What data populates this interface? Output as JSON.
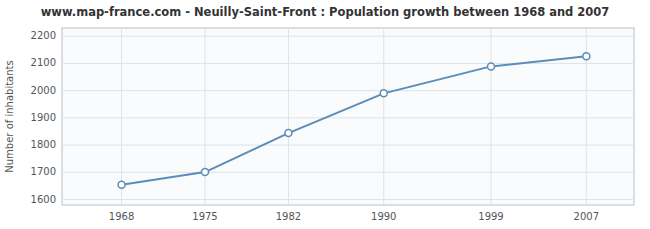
{
  "chart_data": {
    "type": "line",
    "title": "www.map-france.com - Neuilly-Saint-Front : Population growth between 1968 and 2007",
    "y_label": "Number of inhabitants",
    "x": [
      1968,
      1975,
      1982,
      1990,
      1999,
      2007
    ],
    "values": [
      1654,
      1701,
      1844,
      1990,
      2089,
      2126
    ],
    "color": "#5b8db8",
    "marker": "circle",
    "xlim": [
      1963,
      2011
    ],
    "ylim": [
      1580,
      2230
    ],
    "xticks": [
      1968,
      1975,
      1982,
      1990,
      1999,
      2007
    ],
    "yticks": [
      1600,
      1700,
      1800,
      1900,
      2000,
      2100,
      2200
    ],
    "grid": true
  }
}
